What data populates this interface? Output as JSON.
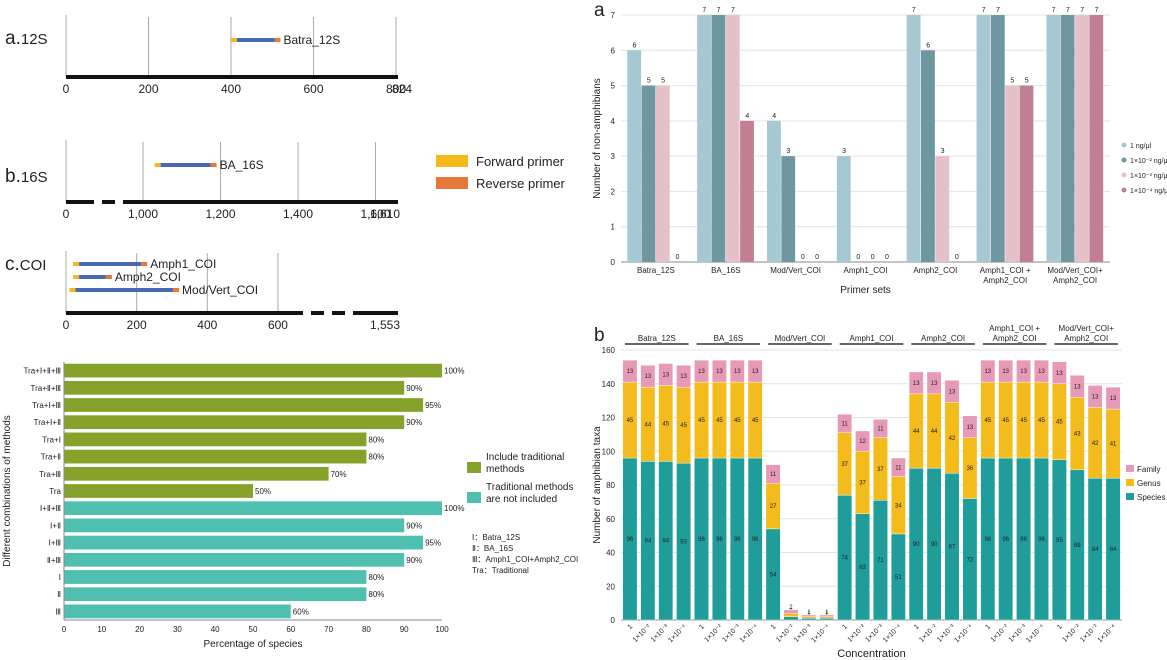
{
  "colors": {
    "forward": "#f5b919",
    "reverse": "#e8773a",
    "amplicon": "#4a69b3",
    "traditional": "#86a22a",
    "nontraditional": "#4fbfb0",
    "c1": "#a5c8d3",
    "c2": "#6f97a2",
    "c3": "#e6c0c8",
    "c4": "#c27f93",
    "species": "#1f9d9a",
    "genus": "#f3bb1c",
    "family": "#e79ab8"
  },
  "primer_maps": [
    {
      "panel": "a.12S",
      "length_label": "824",
      "ticks": [
        0,
        200,
        400,
        600,
        800
      ],
      "tick_labels": [
        "0",
        "200",
        "400",
        "600",
        "800"
      ],
      "max": 824,
      "primers": [
        {
          "name": "Batra_12S",
          "start": 400,
          "end": 520
        }
      ]
    },
    {
      "panel": "b.16S",
      "length_label": "1,610",
      "ticks": [
        0,
        1000,
        1200,
        1400,
        1600
      ],
      "tick_labels": [
        "0",
        "1,000",
        "1,200",
        "1,400",
        "1,600"
      ],
      "max": 1610,
      "primers": [
        {
          "name": "BA_16S",
          "start": 1030,
          "end": 1190
        }
      ]
    },
    {
      "panel": "c.COI",
      "length_label": "1,553",
      "ticks": [
        0,
        200,
        400,
        600
      ],
      "tick_labels": [
        "0",
        "200",
        "400",
        "600"
      ],
      "max": 1553,
      "primers": [
        {
          "name": "Amph1_COI",
          "start": 20,
          "end": 230
        },
        {
          "name": "Amph2_COI",
          "start": 20,
          "end": 130
        },
        {
          "name": "Mod/Vert_COI",
          "start": 10,
          "end": 320
        }
      ]
    }
  ],
  "primer_legend": [
    "Forward primer",
    "Reverse primer"
  ],
  "chart_data": [
    {
      "type": "bar",
      "orientation": "horizontal",
      "xlabel": "Percentage of species",
      "ylabel": "Different combinations of methods",
      "xlim": [
        0,
        100
      ],
      "xticks": [
        0,
        10,
        20,
        30,
        40,
        50,
        60,
        70,
        80,
        90,
        100
      ],
      "categories": [
        "Tra+Ⅰ+Ⅱ+Ⅲ",
        "Tra+Ⅱ+Ⅲ",
        "Tra+Ⅰ+Ⅲ",
        "Tra+Ⅰ+Ⅱ",
        "Tra+Ⅰ",
        "Tra+Ⅱ",
        "Tra+Ⅲ",
        "Tra",
        "Ⅰ+Ⅱ+Ⅲ",
        "Ⅰ+Ⅱ",
        "Ⅰ+Ⅲ",
        "Ⅱ+Ⅲ",
        "Ⅰ",
        "Ⅱ",
        "Ⅲ"
      ],
      "values": [
        100,
        90,
        95,
        90,
        80,
        80,
        70,
        50,
        100,
        90,
        95,
        90,
        80,
        80,
        60
      ],
      "value_labels": [
        "100%",
        "90%",
        "95%",
        "90%",
        "80%",
        "80%",
        "70%",
        "50%",
        "100%",
        "90%",
        "95%",
        "90%",
        "80%",
        "80%",
        "60%"
      ],
      "groups": [
        "traditional",
        "traditional",
        "traditional",
        "traditional",
        "traditional",
        "traditional",
        "traditional",
        "traditional",
        "nontraditional",
        "nontraditional",
        "nontraditional",
        "nontraditional",
        "nontraditional",
        "nontraditional",
        "nontraditional"
      ],
      "legend": [
        "Include traditional methods",
        "Traditional methods are not included"
      ],
      "notes": [
        "Ⅰ：Batra_12S",
        "Ⅱ：BA_16S",
        "Ⅲ：Amph1_COI+Amph2_COI",
        "Tra：Traditional"
      ]
    },
    {
      "type": "bar",
      "panel": "a",
      "xlabel": "Primer sets",
      "ylabel": "Number of non-amphibians",
      "ylim": [
        0,
        7
      ],
      "yticks": [
        0,
        1,
        2,
        3,
        4,
        5,
        6,
        7
      ],
      "categories": [
        "Batra_12S",
        "BA_16S",
        "Mod/Vert_COI",
        "Amph1_COI",
        "Amph2_COI",
        "Amph1_COI + Amph2_COI",
        "Mod/Vert_COI+ Amph2_COI"
      ],
      "series": [
        {
          "name": "1 ng/μl",
          "values": [
            6,
            7,
            4,
            3,
            7,
            7,
            7
          ]
        },
        {
          "name": "1×10⁻² ng/μl",
          "values": [
            5,
            7,
            3,
            0,
            6,
            7,
            7
          ]
        },
        {
          "name": "1×10⁻³ ng/μl",
          "values": [
            5,
            7,
            0,
            0,
            3,
            5,
            7
          ]
        },
        {
          "name": "1×10⁻⁴ ng/μl",
          "values": [
            0,
            4,
            0,
            0,
            0,
            5,
            7
          ]
        }
      ]
    },
    {
      "type": "bar",
      "stacked": true,
      "panel": "b",
      "xlabel": "Concentration",
      "ylabel": "Number of amphibian taxa",
      "ylim": [
        0,
        160
      ],
      "yticks": [
        0,
        20,
        40,
        60,
        80,
        100,
        120,
        140,
        160
      ],
      "groups": [
        "Batra_12S",
        "BA_16S",
        "Mod/Vert_COI",
        "Amph1_COI",
        "Amph2_COI",
        "Amph1_COI + Amph2_COI",
        "Mod/Vert_COI+ Amph2_COI"
      ],
      "concentrations": [
        "1",
        "1×10⁻²",
        "1×10⁻³",
        "1×10⁻⁴"
      ],
      "series": [
        {
          "name": "Species",
          "values": [
            96,
            94,
            94,
            93,
            96,
            96,
            96,
            96,
            54,
            2,
            1,
            1,
            74,
            63,
            71,
            51,
            90,
            90,
            87,
            72,
            96,
            96,
            96,
            96,
            95,
            89,
            84,
            84
          ]
        },
        {
          "name": "Genus",
          "values": [
            45,
            44,
            45,
            45,
            45,
            45,
            45,
            45,
            27,
            2,
            1,
            1,
            37,
            37,
            37,
            34,
            44,
            44,
            42,
            36,
            45,
            45,
            45,
            45,
            45,
            43,
            42,
            41
          ]
        },
        {
          "name": "Family",
          "values": [
            13,
            13,
            13,
            13,
            13,
            13,
            13,
            13,
            11,
            2,
            1,
            1,
            11,
            12,
            11,
            11,
            13,
            13,
            13,
            13,
            13,
            13,
            13,
            13,
            13,
            13,
            13,
            13
          ]
        }
      ],
      "legend": [
        "Family",
        "Genus",
        "Species"
      ]
    }
  ]
}
